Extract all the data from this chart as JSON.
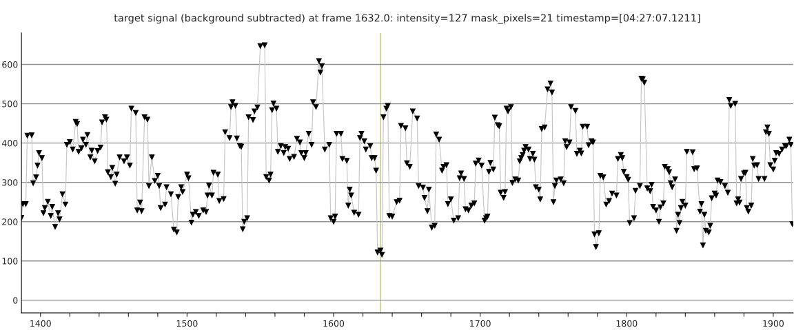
{
  "chart_data": {
    "type": "line",
    "title": "target signal (background subtracted) at frame 1632.0: intensity=127 mask_pixels=21 timestamp=[04:27:07.1211]",
    "x": [
      1387,
      1388,
      1390,
      1391,
      1394,
      1395,
      1397,
      1398,
      1399,
      1401,
      1402,
      1403,
      1405,
      1407,
      1408,
      1410,
      1412,
      1413,
      1415,
      1417,
      1418,
      1420,
      1422,
      1424,
      1425,
      1426,
      1428,
      1429,
      1431,
      1432,
      1434,
      1435,
      1437,
      1439,
      1441,
      1442,
      1444,
      1445,
      1446,
      1448,
      1449,
      1451,
      1452,
      1454,
      1457,
      1459,
      1461,
      1462,
      1465,
      1466,
      1468,
      1469,
      1471,
      1473,
      1474,
      1476,
      1478,
      1480,
      1481,
      1482,
      1485,
      1486,
      1489,
      1491,
      1493,
      1494,
      1496,
      1497,
      1500,
      1501,
      1503,
      1504,
      1506,
      1508,
      1511,
      1513,
      1514,
      1515,
      1517,
      1518,
      1521,
      1522,
      1525,
      1526,
      1529,
      1530,
      1531,
      1533,
      1534,
      1536,
      1537,
      1538,
      1539,
      1541,
      1542,
      1545,
      1546,
      1548,
      1550,
      1553,
      1554,
      1556,
      1557,
      1558,
      1559,
      1561,
      1562,
      1564,
      1566,
      1567,
      1569,
      1570,
      1573,
      1575,
      1577,
      1578,
      1580,
      1581,
      1583,
      1585,
      1586,
      1588,
      1590,
      1591,
      1592,
      1594,
      1597,
      1598,
      1600,
      1601,
      1602,
      1605,
      1606,
      1609,
      1610,
      1611,
      1612,
      1614,
      1617,
      1618,
      1619,
      1621,
      1622,
      1625,
      1626,
      1628,
      1629,
      1630,
      1632,
      1633,
      1634,
      1636,
      1637,
      1638,
      1640,
      1643,
      1645,
      1646,
      1649,
      1650,
      1652,
      1654,
      1657,
      1658,
      1661,
      1662,
      1664,
      1665,
      1667,
      1669,
      1670,
      1672,
      1674,
      1675,
      1677,
      1678,
      1680,
      1682,
      1685,
      1686,
      1687,
      1689,
      1690,
      1692,
      1694,
      1696,
      1697,
      1699,
      1701,
      1703,
      1704,
      1705,
      1706,
      1707,
      1709,
      1710,
      1712,
      1713,
      1714,
      1716,
      1717,
      1718,
      1719,
      1721,
      1722,
      1724,
      1726,
      1727,
      1728,
      1729,
      1730,
      1731,
      1733,
      1734,
      1736,
      1737,
      1738,
      1740,
      1741,
      1742,
      1744,
      1746,
      1748,
      1749,
      1750,
      1751,
      1752,
      1755,
      1757,
      1758,
      1759,
      1761,
      1762,
      1765,
      1766,
      1768,
      1769,
      1770,
      1773,
      1774,
      1776,
      1777,
      1778,
      1779,
      1781,
      1782,
      1784,
      1786,
      1788,
      1790,
      1793,
      1794,
      1796,
      1797,
      1798,
      1800,
      1801,
      1802,
      1805,
      1806,
      1809,
      1810,
      1811,
      1812,
      1814,
      1816,
      1817,
      1818,
      1820,
      1822,
      1823,
      1825,
      1826,
      1828,
      1829,
      1830,
      1831,
      1833,
      1834,
      1835,
      1836,
      1837,
      1838,
      1840,
      1841,
      1845,
      1846,
      1848,
      1850,
      1851,
      1852,
      1853,
      1854,
      1856,
      1857,
      1858,
      1860,
      1861,
      1862,
      1864,
      1867,
      1869,
      1870,
      1871,
      1874,
      1875,
      1876,
      1877,
      1878,
      1880,
      1881,
      1882,
      1883,
      1885,
      1886,
      1887,
      1889,
      1890,
      1894,
      1895,
      1896,
      1897,
      1898,
      1900,
      1901,
      1902,
      1904,
      1906,
      1908,
      1909,
      1911,
      1912,
      1913
    ],
    "series": [
      {
        "color": "#000000",
        "values": [
          210,
          245,
          245,
          419,
          420,
          298,
          313,
          343,
          375,
          362,
          222,
          235,
          251,
          215,
          238,
          187,
          222,
          206,
          270,
          244,
          396,
          403,
          384,
          454,
          449,
          378,
          387,
          409,
          396,
          421,
          364,
          381,
          354,
          380,
          389,
          453,
          466,
          460,
          326,
          314,
          337,
          297,
          320,
          364,
          354,
          364,
          343,
          488,
          477,
          229,
          249,
          227,
          466,
          460,
          291,
          364,
          304,
          317,
          291,
          235,
          244,
          288,
          270,
          180,
          173,
          263,
          288,
          276,
          320,
          311,
          198,
          218,
          225,
          215,
          229,
          225,
          267,
          292,
          267,
          325,
          320,
          253,
          258,
          428,
          413,
          492,
          504,
          495,
          412,
          393,
          391,
          181,
          200,
          209,
          466,
          459,
          481,
          491,
          647,
          649,
          314,
          305,
          320,
          484,
          501,
          488,
          378,
          393,
          375,
          390,
          386,
          360,
          365,
          411,
          402,
          375,
          362,
          375,
          424,
          396,
          504,
          492,
          609,
          580,
          596,
          384,
          396,
          209,
          200,
          213,
          424,
          424,
          360,
          355,
          241,
          282,
          267,
          223,
          218,
          413,
          424,
          405,
          384,
          393,
          362,
          362,
          330,
          122,
          127,
          116,
          466,
          488,
          495,
          215,
          213,
          250,
          254,
          444,
          438,
          349,
          340,
          481,
          463,
          291,
          287,
          261,
          227,
          282,
          185,
          190,
          422,
          409,
          330,
          340,
          344,
          245,
          257,
          203,
          209,
          311,
          323,
          309,
          232,
          229,
          241,
          247,
          348,
          356,
          343,
          203,
          209,
          213,
          327,
          350,
          333,
          465,
          446,
          443,
          274,
          261,
          276,
          488,
          481,
          492,
          299,
          308,
          305,
          354,
          362,
          370,
          381,
          390,
          384,
          360,
          373,
          358,
          288,
          282,
          257,
          436,
          440,
          537,
          552,
          529,
          250,
          291,
          305,
          308,
          298,
          405,
          390,
          402,
          492,
          482,
          373,
          381,
          374,
          442,
          442,
          395,
          405,
          402,
          168,
          136,
          171,
          317,
          313,
          244,
          253,
          272,
          267,
          360,
          370,
          362,
          327,
          314,
          307,
          197,
          209,
          279,
          291,
          564,
          563,
          554,
          285,
          278,
          294,
          238,
          229,
          200,
          237,
          247,
          340,
          334,
          326,
          298,
          288,
          308,
          177,
          218,
          197,
          235,
          251,
          241,
          378,
          377,
          334,
          336,
          226,
          245,
          140,
          218,
          177,
          173,
          190,
          260,
          272,
          267,
          305,
          301,
          291,
          274,
          510,
          495,
          500,
          247,
          257,
          249,
          309,
          323,
          325,
          235,
          226,
          241,
          360,
          343,
          344,
          309,
          309,
          428,
          440,
          424,
          344,
          333,
          355,
          375,
          373,
          384,
          393,
          393,
          409,
          396,
          194
        ]
      }
    ],
    "marker": "triangle",
    "line_style": "solid",
    "xlim": [
      1387,
      1913.6
    ],
    "ylim": [
      -32,
      680
    ],
    "xticks": [
      1400,
      {
        "value": 1420,
        "label": null
      },
      {
        "value": 1440,
        "label": null
      },
      {
        "value": 1460,
        "label": null
      },
      {
        "value": 1480,
        "label": null
      },
      1500,
      {
        "value": 1520,
        "label": null
      },
      {
        "value": 1540,
        "label": null
      },
      {
        "value": 1560,
        "label": null
      },
      {
        "value": 1580,
        "label": null
      },
      1600,
      {
        "value": 1620,
        "label": null
      },
      {
        "value": 1640,
        "label": null
      },
      {
        "value": 1660,
        "label": null
      },
      {
        "value": 1680,
        "label": null
      },
      1700,
      {
        "value": 1720,
        "label": null
      },
      {
        "value": 1740,
        "label": null
      },
      {
        "value": 1760,
        "label": null
      },
      {
        "value": 1780,
        "label": null
      },
      1800,
      {
        "value": 1820,
        "label": null
      },
      {
        "value": 1840,
        "label": null
      },
      {
        "value": 1860,
        "label": null
      },
      {
        "value": 1880,
        "label": null
      },
      1900
    ],
    "yticks": [
      0,
      100,
      200,
      300,
      400,
      500,
      600
    ],
    "grid": "y",
    "legend": false,
    "ref_lines": [
      {
        "axis": "x",
        "value": 1632,
        "color": "#c8c080"
      }
    ]
  }
}
